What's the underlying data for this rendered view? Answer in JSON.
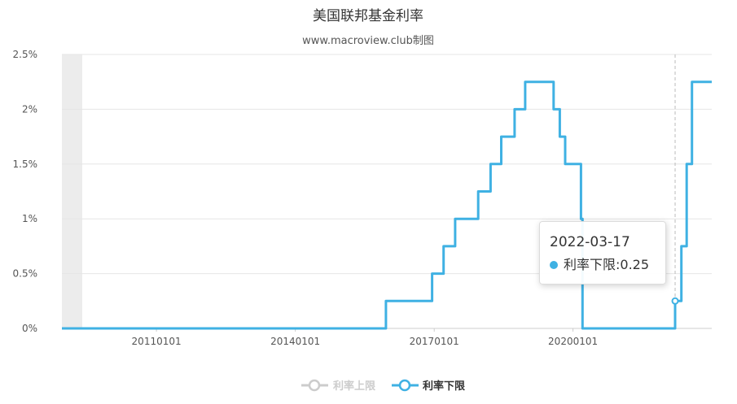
{
  "chart_data": {
    "type": "line",
    "title": "美国联邦基金利率",
    "subtitle": "www.macroview.club制图",
    "ylim": [
      0,
      0.025
    ],
    "y_ticks": [
      "0%",
      "0.5%",
      "1%",
      "1.5%",
      "2%",
      "2.5%"
    ],
    "x_ticks": [
      "20110101",
      "20140101",
      "20170101",
      "20200101"
    ],
    "x_range": [
      "2008-12-16",
      "2022-12-31"
    ],
    "grid": true,
    "legend_position": "bottom",
    "series": [
      {
        "name": "利率上限",
        "color": "#cccccc",
        "visible": false,
        "points": []
      },
      {
        "name": "利率下限",
        "color": "#3fb1e3",
        "visible": true,
        "step": true,
        "points": [
          [
            "2008-12-16",
            0
          ],
          [
            "2015-12-17",
            0.0025
          ],
          [
            "2016-12-15",
            0.005
          ],
          [
            "2017-03-16",
            0.0075
          ],
          [
            "2017-06-15",
            0.01
          ],
          [
            "2017-12-14",
            0.0125
          ],
          [
            "2018-03-22",
            0.015
          ],
          [
            "2018-06-14",
            0.0175
          ],
          [
            "2018-09-27",
            0.02
          ],
          [
            "2018-12-20",
            0.0225
          ],
          [
            "2019-08-01",
            0.02
          ],
          [
            "2019-09-19",
            0.0175
          ],
          [
            "2019-10-31",
            0.015
          ],
          [
            "2020-03-04",
            0.01
          ],
          [
            "2020-03-16",
            0
          ],
          [
            "2022-03-17",
            0.0025
          ],
          [
            "2022-05-05",
            0.0075
          ],
          [
            "2022-06-16",
            0.015
          ],
          [
            "2022-07-28",
            0.0225
          ],
          [
            "2022-12-31",
            0.0225
          ]
        ]
      }
    ],
    "tooltip": {
      "date": "2022-03-17",
      "label": "利率下限:0.25"
    }
  }
}
